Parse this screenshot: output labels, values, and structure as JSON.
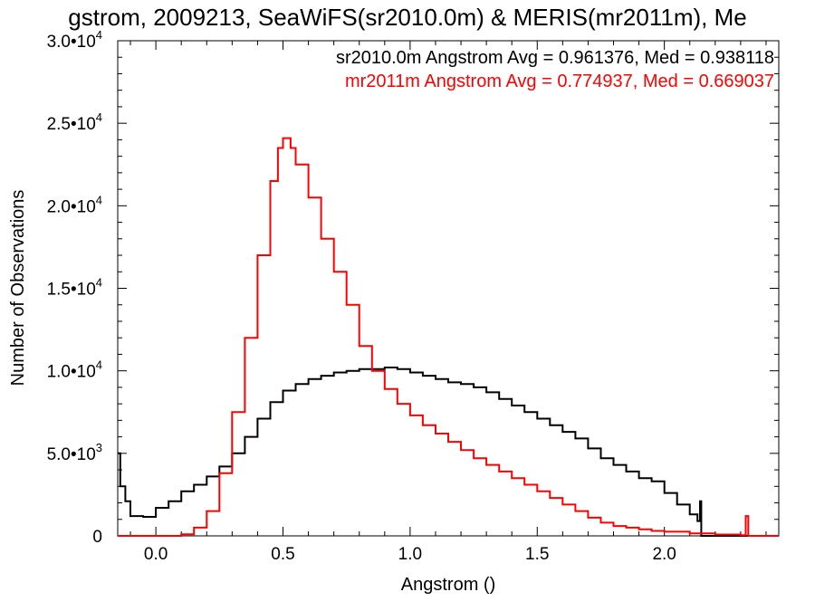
{
  "chart_data": {
    "type": "line",
    "title": "gstrom, 2009213, SeaWiFS(sr2010.0m) & MERIS(mr2011m), Me",
    "xlabel": "Angstrom ()",
    "ylabel": "Number of Observations",
    "xlim": [
      -0.15,
      2.45
    ],
    "ylim": [
      0,
      30000
    ],
    "xticks": [
      {
        "value": 0.0,
        "label": "0.0"
      },
      {
        "value": 0.5,
        "label": "0.5"
      },
      {
        "value": 1.0,
        "label": "1.0"
      },
      {
        "value": 1.5,
        "label": "1.5"
      },
      {
        "value": 2.0,
        "label": "2.0"
      }
    ],
    "yticks": [
      {
        "value": 0,
        "label": "0",
        "exp": ""
      },
      {
        "value": 5000,
        "label": "5.0•10",
        "exp": "3"
      },
      {
        "value": 10000,
        "label": "1.0•10",
        "exp": "4"
      },
      {
        "value": 15000,
        "label": "1.5•10",
        "exp": "4"
      },
      {
        "value": 20000,
        "label": "2.0•10",
        "exp": "4"
      },
      {
        "value": 25000,
        "label": "2.5•10",
        "exp": "4"
      },
      {
        "value": 30000,
        "label": "3.0•10",
        "exp": "4"
      }
    ],
    "grid": false,
    "legend_position": "top-right",
    "series": [
      {
        "name": "sr2010.0m Angstrom Avg = 0.961376, Med = 0.938118",
        "color": "#000000",
        "points": [
          [
            -0.15,
            5000
          ],
          [
            -0.14,
            3000
          ],
          [
            -0.12,
            2100
          ],
          [
            -0.1,
            1200
          ],
          [
            -0.05,
            1150
          ],
          [
            0.0,
            1700
          ],
          [
            0.05,
            2100
          ],
          [
            0.1,
            2700
          ],
          [
            0.15,
            3100
          ],
          [
            0.2,
            3600
          ],
          [
            0.25,
            4200
          ],
          [
            0.3,
            5000
          ],
          [
            0.35,
            6000
          ],
          [
            0.4,
            7100
          ],
          [
            0.45,
            8100
          ],
          [
            0.5,
            8800
          ],
          [
            0.55,
            9200
          ],
          [
            0.6,
            9500
          ],
          [
            0.65,
            9700
          ],
          [
            0.7,
            9900
          ],
          [
            0.75,
            10000
          ],
          [
            0.8,
            10100
          ],
          [
            0.85,
            10100
          ],
          [
            0.9,
            10200
          ],
          [
            0.95,
            10100
          ],
          [
            1.0,
            9900
          ],
          [
            1.05,
            9700
          ],
          [
            1.1,
            9500
          ],
          [
            1.15,
            9300
          ],
          [
            1.2,
            9200
          ],
          [
            1.25,
            9000
          ],
          [
            1.3,
            8700
          ],
          [
            1.35,
            8300
          ],
          [
            1.4,
            7900
          ],
          [
            1.45,
            7500
          ],
          [
            1.5,
            7100
          ],
          [
            1.55,
            6700
          ],
          [
            1.6,
            6300
          ],
          [
            1.65,
            5900
          ],
          [
            1.7,
            5300
          ],
          [
            1.75,
            4700
          ],
          [
            1.8,
            4300
          ],
          [
            1.85,
            3900
          ],
          [
            1.9,
            3500
          ],
          [
            1.95,
            3300
          ],
          [
            2.0,
            2600
          ],
          [
            2.05,
            1900
          ],
          [
            2.1,
            1300
          ],
          [
            2.13,
            900
          ],
          [
            2.14,
            2100
          ],
          [
            2.145,
            0
          ],
          [
            2.45,
            0
          ]
        ]
      },
      {
        "name": "mr2011m Angstrom Avg = 0.774937, Med = 0.669037",
        "color": "#ff0000",
        "points": [
          [
            -0.15,
            0
          ],
          [
            0.08,
            0
          ],
          [
            0.1,
            100
          ],
          [
            0.15,
            500
          ],
          [
            0.2,
            1500
          ],
          [
            0.25,
            3800
          ],
          [
            0.3,
            7500
          ],
          [
            0.35,
            12000
          ],
          [
            0.4,
            17000
          ],
          [
            0.45,
            21500
          ],
          [
            0.48,
            23500
          ],
          [
            0.5,
            24100
          ],
          [
            0.53,
            23500
          ],
          [
            0.55,
            22500
          ],
          [
            0.6,
            20500
          ],
          [
            0.65,
            18000
          ],
          [
            0.7,
            16000
          ],
          [
            0.75,
            14000
          ],
          [
            0.8,
            11500
          ],
          [
            0.85,
            10000
          ],
          [
            0.9,
            8900
          ],
          [
            0.95,
            8000
          ],
          [
            1.0,
            7300
          ],
          [
            1.05,
            6700
          ],
          [
            1.1,
            6200
          ],
          [
            1.15,
            5700
          ],
          [
            1.2,
            5200
          ],
          [
            1.25,
            4700
          ],
          [
            1.3,
            4300
          ],
          [
            1.35,
            3900
          ],
          [
            1.4,
            3500
          ],
          [
            1.45,
            3100
          ],
          [
            1.5,
            2700
          ],
          [
            1.55,
            2300
          ],
          [
            1.6,
            1900
          ],
          [
            1.65,
            1500
          ],
          [
            1.7,
            1100
          ],
          [
            1.75,
            800
          ],
          [
            1.8,
            600
          ],
          [
            1.85,
            500
          ],
          [
            1.9,
            400
          ],
          [
            1.95,
            300
          ],
          [
            2.0,
            250
          ],
          [
            2.1,
            150
          ],
          [
            2.2,
            80
          ],
          [
            2.3,
            40
          ],
          [
            2.32,
            1200
          ],
          [
            2.33,
            0
          ],
          [
            2.45,
            0
          ]
        ]
      }
    ]
  }
}
